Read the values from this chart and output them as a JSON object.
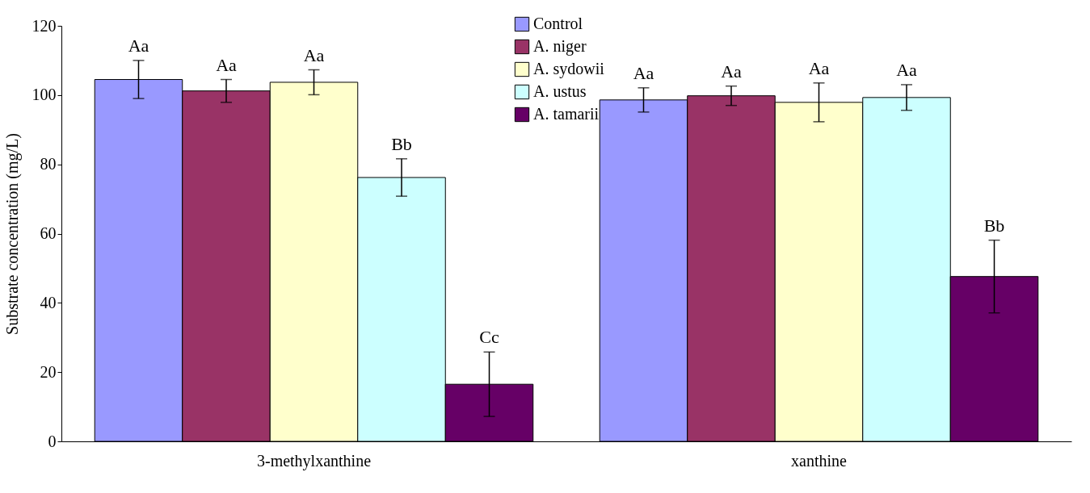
{
  "chart_data": {
    "type": "bar",
    "ylabel": "Substrate concentration (mg/L)",
    "categories": [
      "3-methylxanthine",
      "xanthine"
    ],
    "ylim": [
      0,
      120
    ],
    "yticks": [
      0,
      20,
      40,
      60,
      80,
      100,
      120
    ],
    "grid": false,
    "legend": "top",
    "series": [
      {
        "name": "Control",
        "color": "#9999ff",
        "values": [
          104.5,
          98.6
        ],
        "errors": [
          5.5,
          3.5
        ],
        "value_labels": [
          "Aa",
          "Aa"
        ]
      },
      {
        "name": "A. niger",
        "color": "#993366",
        "values": [
          101.2,
          99.8
        ],
        "errors": [
          3.3,
          2.8
        ],
        "value_labels": [
          "Aa",
          "Aa"
        ]
      },
      {
        "name": "A. sydowii",
        "color": "#ffffcc",
        "values": [
          103.7,
          97.9
        ],
        "errors": [
          3.6,
          5.6
        ],
        "value_labels": [
          "Aa",
          "Aa"
        ]
      },
      {
        "name": "A. ustus",
        "color": "#ccffff",
        "values": [
          76.2,
          99.3
        ],
        "errors": [
          5.4,
          3.7
        ],
        "value_labels": [
          "Bb",
          "Aa"
        ]
      },
      {
        "name": "A. tamarii",
        "color": "#660066",
        "values": [
          16.5,
          47.6
        ],
        "errors": [
          9.3,
          10.5
        ],
        "value_labels": [
          "Cc",
          "Bb"
        ]
      }
    ]
  }
}
